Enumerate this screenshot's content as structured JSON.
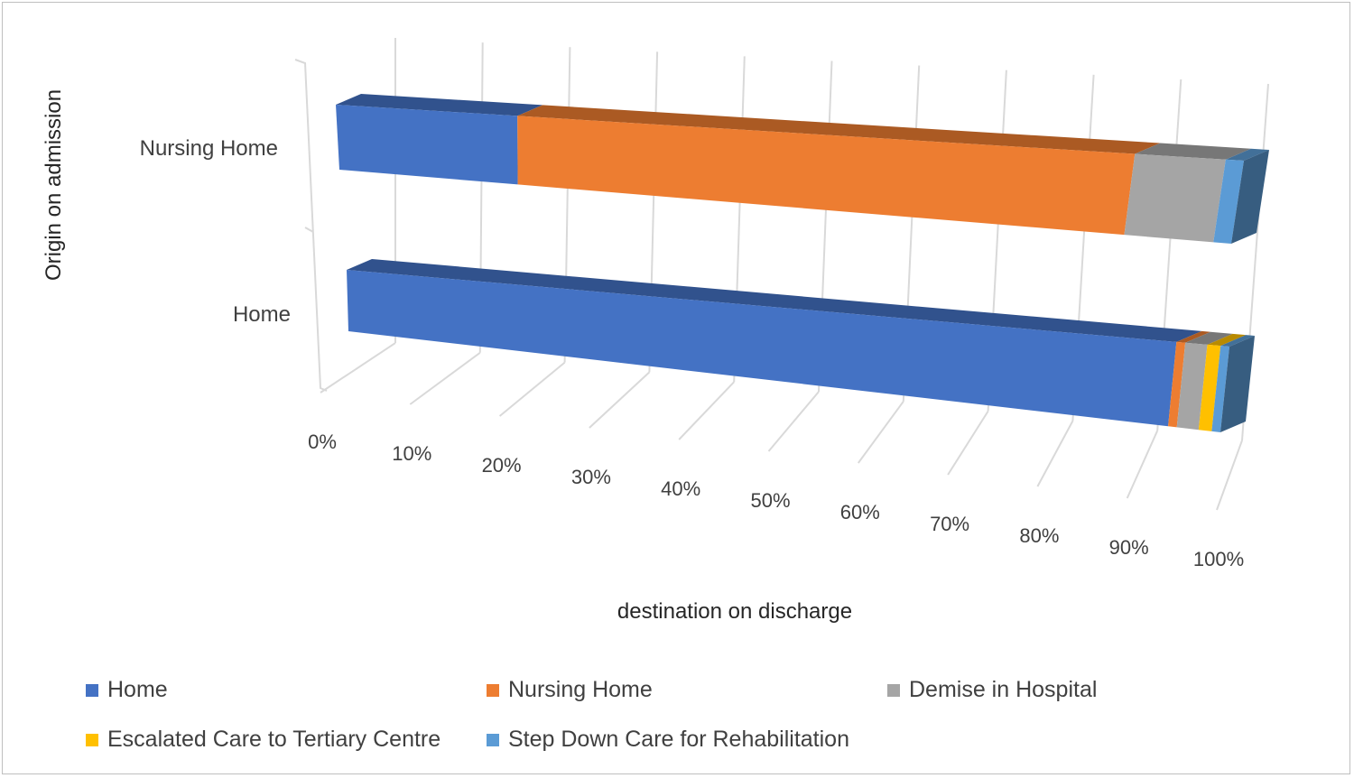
{
  "chart_data": {
    "type": "bar",
    "orientation": "horizontal",
    "stacked": "100%",
    "style": "3d",
    "title": "",
    "xlabel": "destination on discharge",
    "ylabel": "Origin on admission",
    "categories": [
      "Nursing Home",
      "Home"
    ],
    "xlim": [
      0,
      100
    ],
    "x_ticks": [
      "0%",
      "10%",
      "20%",
      "30%",
      "40%",
      "50%",
      "60%",
      "70%",
      "80%",
      "90%",
      "100%"
    ],
    "grid": true,
    "legend_position": "bottom",
    "series": [
      {
        "name": "Home",
        "color": "#4472C4",
        "values": [
          20,
          94
        ]
      },
      {
        "name": "Nursing Home",
        "color": "#ED7D31",
        "values": [
          68,
          1
        ]
      },
      {
        "name": "Demise in Hospital",
        "color": "#A5A5A5",
        "values": [
          10,
          2.5
        ]
      },
      {
        "name": "Escalated Care to Tertiary Centre",
        "color": "#FFC000",
        "values": [
          0,
          1.5
        ]
      },
      {
        "name": "Step Down Care for Rehabilitation",
        "color": "#5B9BD5",
        "values": [
          2,
          1
        ]
      }
    ]
  }
}
